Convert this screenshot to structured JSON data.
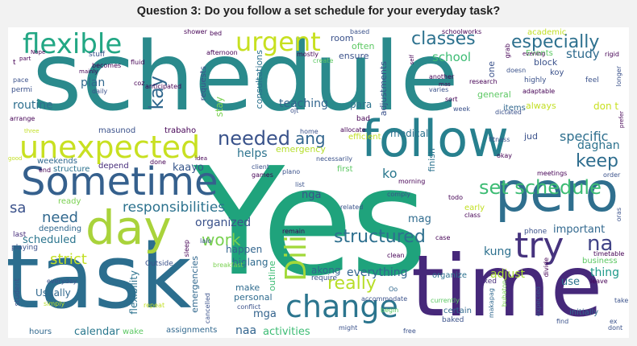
{
  "title": "Question 3: Do you follow a set schedule for your everyday task?",
  "words": {
    "schedule": "schedule",
    "yes": "Yes",
    "task": "task",
    "time": "time",
    "pero": "pero",
    "follow": "follow",
    "sometime": "Sometime",
    "day": "day",
    "flexible": "flexible",
    "urgent": "urgent",
    "unexpected": "unexpected",
    "change": "change",
    "try": "try",
    "dili": "Dili",
    "set_schedule": "set schedule",
    "structured": "structured",
    "classes": "classes",
    "especially": "especially",
    "responsibilities": "responsibilities",
    "keep": "keep",
    "needed": "needed",
    "really": "really",
    "na": "na",
    "kay": "kay",
    "work": "work",
    "need": "need",
    "strict": "strict",
    "ang": "ang",
    "specific": "specific",
    "daghan": "daghan",
    "school": "school",
    "study": "study",
    "teaching": "teaching",
    "plan": "plan",
    "routine": "routine",
    "helps": "helps",
    "organized": "organized",
    "scheduled": "scheduled",
    "everything": "everything",
    "adjust": "adjust",
    "important": "important",
    "kung": "kung",
    "thing": "thing",
    "mag": "mag",
    "ko": "ko",
    "nga": "nga",
    "akong": "akong",
    "use": "use",
    "calendar": "calendar",
    "activities": "activities",
    "naa": "naa",
    "mga": "mga",
    "kaayo": "kaayo",
    "sa": "sa",
    "flexibility": "flexibility",
    "happen": "happen",
    "biglang": "biglang",
    "dont": "don t",
    "always": "always",
    "make": "make",
    "personal": "personal",
    "outline": "outline",
    "general": "general",
    "items": "items",
    "finish": "finish",
    "para": "para",
    "medical": "medical",
    "emergency": "emergency",
    "usually": "Usually",
    "stay": "stay",
    "consultations": "consultations",
    "trabaho": "trabaho",
    "masunod": "masunod",
    "depend": "depend",
    "weekends": "weekends",
    "structure": "structure",
    "end": "end",
    "ready": "ready",
    "depending": "depending",
    "last": "last",
    "playing": "playing",
    "emergencies": "emergencies",
    "assignments": "assignments",
    "wake": "wake",
    "hours": "hours",
    "student": "student",
    "simply": "simply",
    "everyday": "everyday",
    "repeat": "repeat",
    "cancelled": "cancelled",
    "conflict": "conflict",
    "outside": "Outside",
    "breakfast": "breakfast",
    "sleep": "sleep",
    "lalo": "lalo",
    "require": "require",
    "remain": "remain",
    "certain": "certain",
    "baked": "baked",
    "accommodate": "accommodate",
    "currently": "currently",
    "begin": "begin",
    "free": "free",
    "might": "might",
    "oo": "Oo",
    "clean": "clean",
    "organize": "organize",
    "fixed": "fixed",
    "buhaton": "buhaton",
    "makapag": "makapag",
    "expected": "expected",
    "find": "find",
    "initially": "initially",
    "ex": "ex",
    "dont2": "dont",
    "take": "take",
    "leave": "leave",
    "timetable": "timetable",
    "business": "business",
    "divide": "divide",
    "phone": "phone",
    "early": "early",
    "class": "class",
    "oras": "oras",
    "meetings": "meetings",
    "order": "order",
    "jud": "jud",
    "fitness": "fitness",
    "okay": "okay",
    "efficient": "efficient",
    "bad": "bad",
    "allocate": "allocate",
    "home": "home",
    "ojt": "ojt",
    "necessarily": "necessarily",
    "client": "client",
    "plano": "plano",
    "list": "list",
    "games": "games",
    "morning": "morning",
    "comply": "comply",
    "todo": "todo",
    "related": "related",
    "case": "case",
    "first": "first",
    "done": "done",
    "idea": "idea",
    "shower": "shower",
    "bed": "bed",
    "based": "based",
    "schoolworks": "schoolworks",
    "academic": "academic",
    "grab": "grab",
    "rigid": "rigid",
    "events": "Events",
    "block": "block",
    "doesn": "doesn",
    "evening": "evening",
    "koy": "koy",
    "feel": "feel",
    "longer": "longer",
    "highly": "highly",
    "adaptable": "adaptable",
    "prefer": "prefer",
    "dictated": "dictated",
    "week": "week",
    "sort": "sort",
    "mas": "mas",
    "varies": "varies",
    "another": "another",
    "self": "self",
    "research": "research",
    "one": "one",
    "adjustments": "adjustments",
    "room": "room",
    "often": "often",
    "ensure": "ensure",
    "mostly": "mostly",
    "create": "create",
    "afternoon": "afternoon",
    "requests": "requests",
    "coz": "coz",
    "anticipated": "anticipated",
    "daily": "daily",
    "mainly": "mainly",
    "becomes": "becomes",
    "fluid": "fluid",
    "stuff": "stuff",
    "nope": "Nope",
    "part": "part",
    "pace": "pace",
    "permi": "permi",
    "arrange": "arrange",
    "three": "three",
    "good": "good",
    "t": "t"
  },
  "colors": {
    "background": "#f2f2f2",
    "panel": "#ffffff",
    "title": "#222222"
  }
}
